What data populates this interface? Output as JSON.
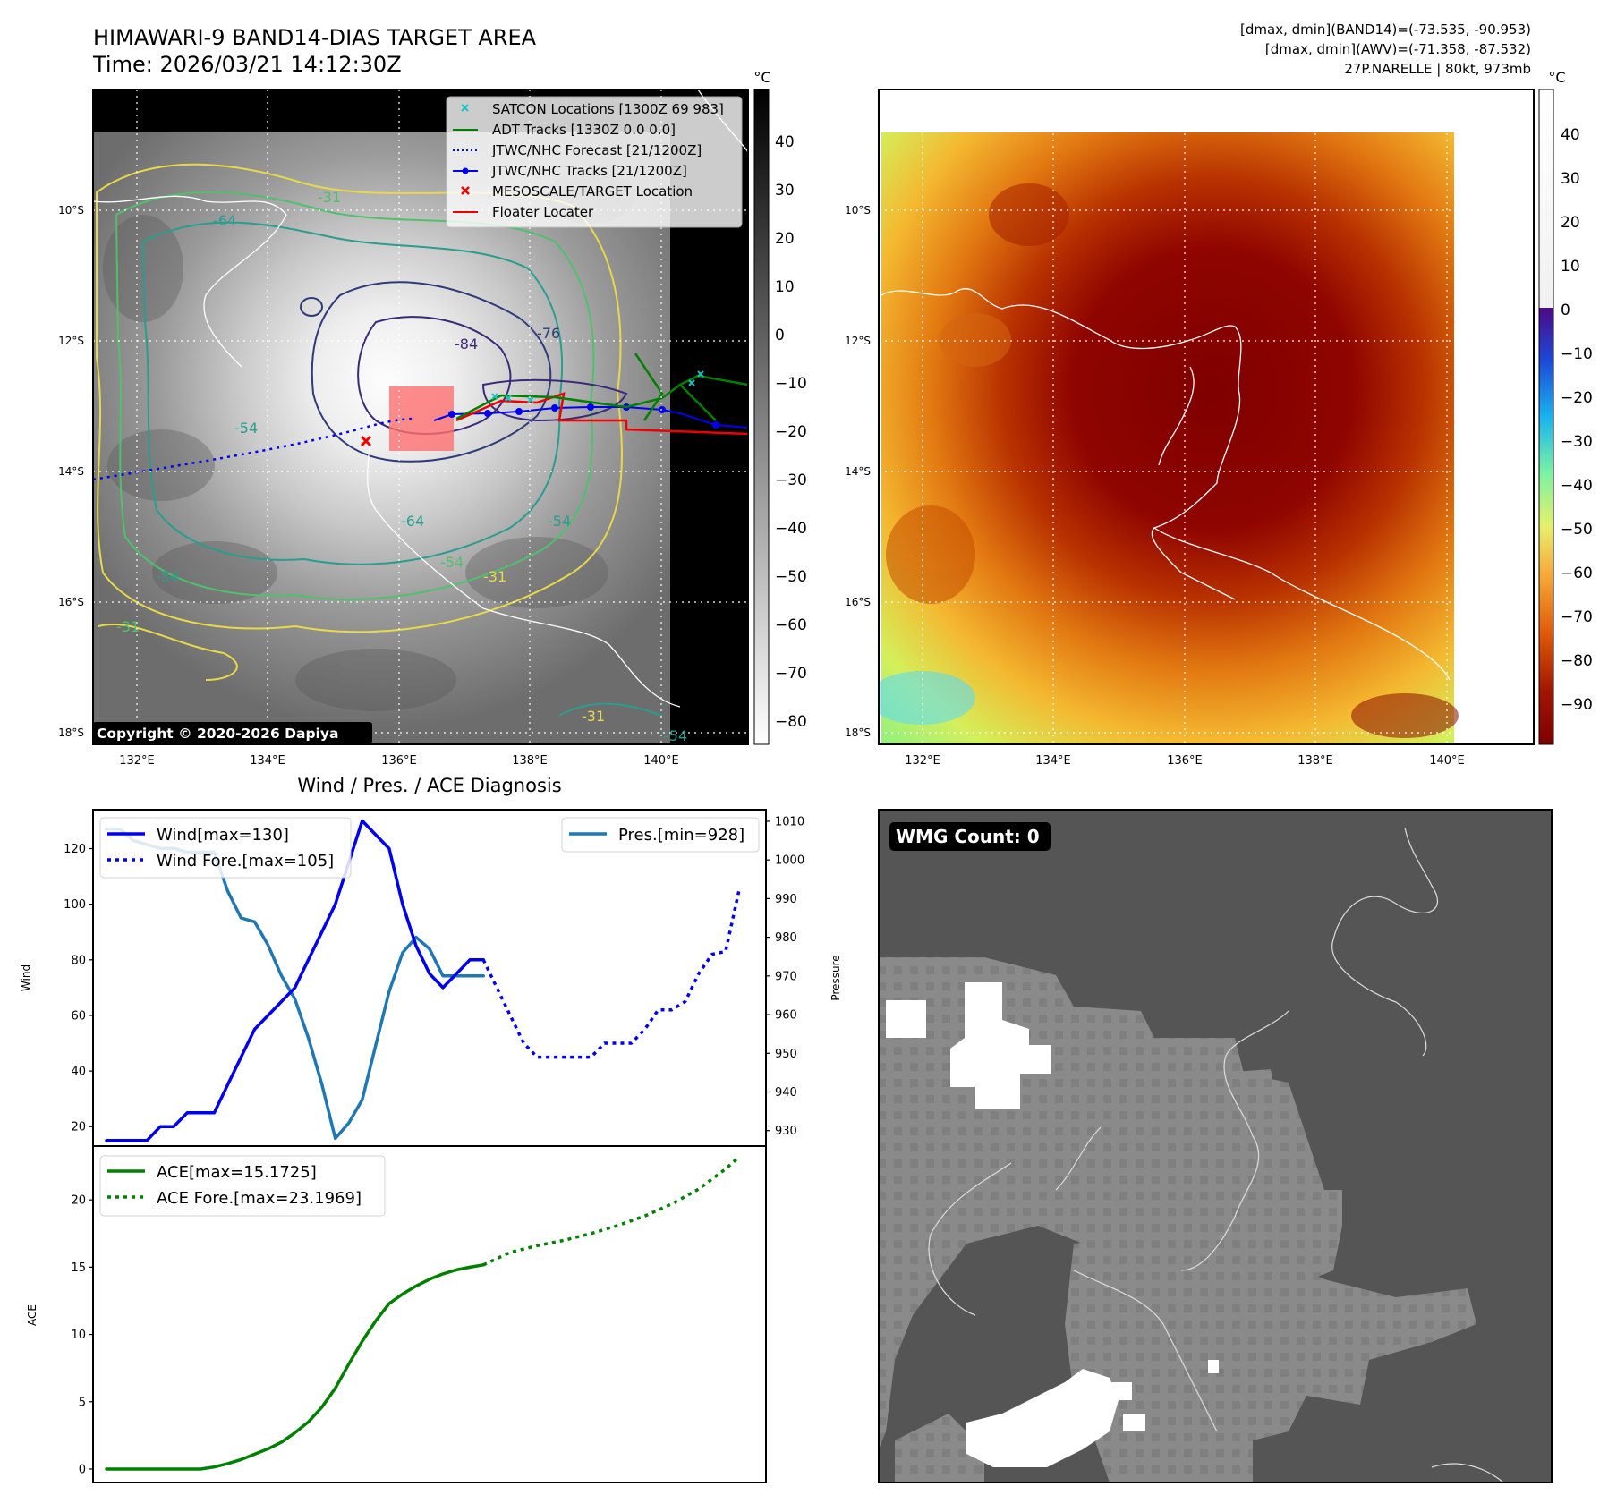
{
  "header": {
    "title_line1": "HIMAWARI-9 BAND14-DIAS TARGET AREA",
    "title_line2": "Time: 2026/03/21 14:12:30Z",
    "info_line1": "[dmax, dmin](BAND14)=(-73.535, -90.953)",
    "info_line2": "[dmax, dmin](AWV)=(-71.358, -87.532)",
    "info_line3": "27P.NARELLE | 80kt, 973mb"
  },
  "map_axes": {
    "lat_labels": [
      "10°S",
      "12°S",
      "14°S",
      "16°S",
      "18°S"
    ],
    "lon_labels": [
      "132°E",
      "134°E",
      "136°E",
      "138°E",
      "140°E"
    ]
  },
  "ir_panel": {
    "copyright": "Copyright © 2020-2026 Dapiya",
    "legend": [
      "SATCON Locations [1300Z 69 983]",
      "ADT Tracks [1330Z 0.0 0.0]",
      "JTWC/NHC Forecast [21/1200Z]",
      "JTWC/NHC Tracks [21/1200Z]",
      "MESOSCALE/TARGET Location",
      "Floater Locater"
    ],
    "contour_labels": [
      "-64",
      "-31",
      "-54",
      "-76",
      "-84",
      "-64",
      "-54",
      "-54",
      "-31",
      "-54",
      "-31",
      "-54",
      "-31"
    ],
    "colorbar_unit": "°C",
    "colorbar_ticks": [
      "40",
      "30",
      "20",
      "10",
      "0",
      "−10",
      "−20",
      "−30",
      "−40",
      "−50",
      "−60",
      "−70",
      "−80"
    ]
  },
  "awv_panel": {
    "colorbar_unit": "°C",
    "colorbar_ticks": [
      "40",
      "30",
      "20",
      "10",
      "0",
      "−10",
      "−20",
      "−30",
      "−40",
      "−50",
      "−60",
      "−70",
      "−80",
      "−90"
    ]
  },
  "wmg_panel": {
    "label": "WMG Count: 0"
  },
  "diagnosis": {
    "title": "Wind / Pres. / ACE Diagnosis",
    "wind_ylabel": "Wind",
    "pres_ylabel": "Pressure",
    "ace_ylabel": "ACE",
    "wind_legend": [
      "Wind[max=130]",
      "Wind Fore.[max=105]"
    ],
    "pres_legend": [
      "Pres.[min=928]"
    ],
    "ace_legend": [
      "ACE[max=15.1725]",
      "ACE Fore.[max=23.1969]"
    ],
    "wind_ticks": [
      "20",
      "40",
      "60",
      "80",
      "100",
      "120"
    ],
    "pres_ticks": [
      "930",
      "940",
      "950",
      "960",
      "970",
      "980",
      "990",
      "1000",
      "1010"
    ],
    "ace_ticks": [
      "0",
      "5",
      "10",
      "15",
      "20"
    ]
  },
  "chart_data": [
    {
      "type": "line",
      "title": "Wind / Pres. / ACE Diagnosis",
      "ylabel": "Wind",
      "ylim": [
        13,
        134
      ],
      "xlim": [
        -1,
        49
      ],
      "series": [
        {
          "name": "Wind[max=130]",
          "color": "#0000ee",
          "style": "solid",
          "x": [
            0,
            1,
            2,
            3,
            4,
            5,
            6,
            7,
            8,
            9,
            10,
            11,
            12,
            13,
            14,
            15,
            16,
            17,
            18,
            19,
            20,
            21,
            22,
            23,
            24,
            25,
            26,
            27,
            28
          ],
          "values": [
            15,
            15,
            15,
            15,
            20,
            20,
            25,
            25,
            25,
            35,
            45,
            55,
            60,
            65,
            70,
            80,
            90,
            100,
            115,
            130,
            125,
            120,
            100,
            85,
            75,
            70,
            75,
            80,
            80
          ]
        },
        {
          "name": "Wind Fore.[max=105]",
          "color": "#0000ee",
          "style": "dotted",
          "x": [
            28,
            29,
            30,
            31,
            32,
            33,
            34,
            35,
            36,
            37,
            38,
            39,
            40,
            41,
            42,
            43,
            44,
            45,
            46,
            47
          ],
          "values": [
            80,
            70,
            60,
            50,
            45,
            45,
            45,
            45,
            45,
            50,
            50,
            50,
            55,
            62,
            62,
            65,
            75,
            82,
            83,
            105
          ]
        }
      ]
    },
    {
      "type": "line",
      "ylabel": "Pressure",
      "ylim": [
        926,
        1013
      ],
      "xlim": [
        -1,
        49
      ],
      "series": [
        {
          "name": "Pres.[min=928]",
          "color": "#1f77b4",
          "style": "solid",
          "x": [
            0,
            1,
            2,
            3,
            4,
            5,
            6,
            7,
            8,
            9,
            10,
            11,
            12,
            13,
            14,
            15,
            16,
            17,
            18,
            19,
            20,
            21,
            22,
            23,
            24,
            25,
            26,
            27,
            28
          ],
          "values": [
            1008,
            1008,
            1005,
            1004,
            1003,
            1003,
            1002,
            1002,
            1002,
            992,
            985,
            984,
            978,
            970,
            964,
            954,
            942,
            928,
            932,
            938,
            952,
            966,
            976,
            980,
            977,
            970,
            970,
            970,
            970
          ]
        }
      ]
    },
    {
      "type": "line",
      "ylabel": "ACE",
      "ylim": [
        -1,
        24
      ],
      "xlim": [
        -1,
        49
      ],
      "series": [
        {
          "name": "ACE[max=15.1725]",
          "color": "#008000",
          "style": "solid",
          "x": [
            0,
            1,
            2,
            3,
            4,
            5,
            6,
            7,
            8,
            9,
            10,
            11,
            12,
            13,
            14,
            15,
            16,
            17,
            18,
            19,
            20,
            21,
            22,
            23,
            24,
            25,
            26,
            27,
            28
          ],
          "values": [
            0,
            0,
            0,
            0,
            0,
            0,
            0,
            0,
            0.15,
            0.4,
            0.7,
            1.1,
            1.5,
            2.0,
            2.7,
            3.5,
            4.6,
            6.0,
            7.8,
            9.5,
            11.0,
            12.3,
            13.0,
            13.6,
            14.1,
            14.5,
            14.8,
            15.0,
            15.1725
          ]
        },
        {
          "name": "ACE Fore.[max=23.1969]",
          "color": "#008000",
          "style": "dotted",
          "x": [
            28,
            30,
            32,
            34,
            36,
            38,
            40,
            42,
            44,
            46,
            47
          ],
          "values": [
            15.1725,
            16.1,
            16.6,
            17.0,
            17.5,
            18.1,
            18.8,
            19.7,
            20.8,
            22.3,
            23.1969
          ]
        }
      ]
    }
  ]
}
